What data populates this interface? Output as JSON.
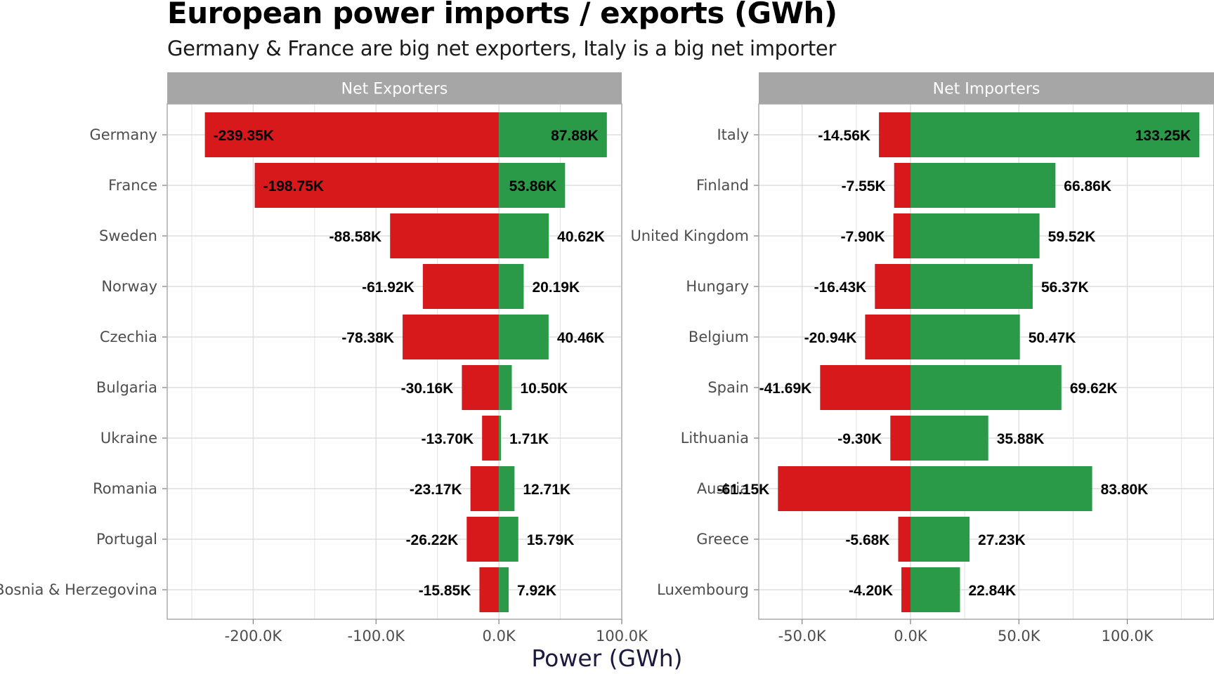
{
  "title": "European power imports / exports (GWh)",
  "subtitle": "Germany & France are big net exporters, Italy is a big net importer",
  "colors": {
    "negative": "#d7191c",
    "positive": "#2b9a48",
    "strip": "#a6a6a6",
    "grid": "#dedede",
    "panel_border": "#a6a6a6"
  },
  "chart_data": [
    {
      "type": "bar",
      "facet": "Net Exporters",
      "xlabel": "Power (GWh)",
      "xlim": [
        -270000,
        100000
      ],
      "x_ticks": [
        -200000,
        -100000,
        0,
        100000
      ],
      "x_tick_labels": [
        "-200.0K",
        "-100.0K",
        "0.0K",
        "100.0K"
      ],
      "categories": [
        "Germany",
        "France",
        "Sweden",
        "Norway",
        "Czechia",
        "Bulgaria",
        "Ukraine",
        "Romania",
        "Portugal",
        "Bosnia & Herzegovina"
      ],
      "series": [
        {
          "values": [
            -239350,
            -198750,
            -88580,
            -61920,
            -78380,
            -30160,
            -13700,
            -23170,
            -26220,
            -15850
          ],
          "labels": [
            "-239.35K",
            "-198.75K",
            "-88.58K",
            "-61.92K",
            "-78.38K",
            "-30.16K",
            "-13.70K",
            "-23.17K",
            "-26.22K",
            "-15.85K"
          ]
        },
        {
          "values": [
            87880,
            53860,
            40620,
            20190,
            40460,
            10500,
            1710,
            12710,
            15790,
            7920
          ],
          "labels": [
            "87.88K",
            "53.86K",
            "40.62K",
            "20.19K",
            "40.46K",
            "10.50K",
            "1.71K",
            "12.71K",
            "15.79K",
            "7.92K"
          ]
        }
      ],
      "grid": true
    },
    {
      "type": "bar",
      "facet": "Net Importers",
      "xlabel": "Power (GWh)",
      "xlim": [
        -70000,
        140000
      ],
      "x_ticks": [
        -50000,
        0,
        50000,
        100000
      ],
      "x_tick_labels": [
        "-50.0K",
        "0.0K",
        "50.0K",
        "100.0K"
      ],
      "categories": [
        "Italy",
        "Finland",
        "United Kingdom",
        "Hungary",
        "Belgium",
        "Spain",
        "Lithuania",
        "Austria",
        "Greece",
        "Luxembourg"
      ],
      "series": [
        {
          "values": [
            -14560,
            -7550,
            -7900,
            -16430,
            -20940,
            -41690,
            -9300,
            -61150,
            -5680,
            -4200
          ],
          "labels": [
            "-14.56K",
            "-7.55K",
            "-7.90K",
            "-16.43K",
            "-20.94K",
            "-41.69K",
            "-9.30K",
            "-61.15K",
            "-5.68K",
            "-4.20K"
          ]
        },
        {
          "values": [
            133250,
            66860,
            59520,
            56370,
            50470,
            69620,
            35880,
            83800,
            27230,
            22840
          ],
          "labels": [
            "133.25K",
            "66.86K",
            "59.52K",
            "56.37K",
            "50.47K",
            "69.62K",
            "35.88K",
            "83.80K",
            "27.23K",
            "22.84K"
          ]
        }
      ],
      "grid": true
    }
  ]
}
